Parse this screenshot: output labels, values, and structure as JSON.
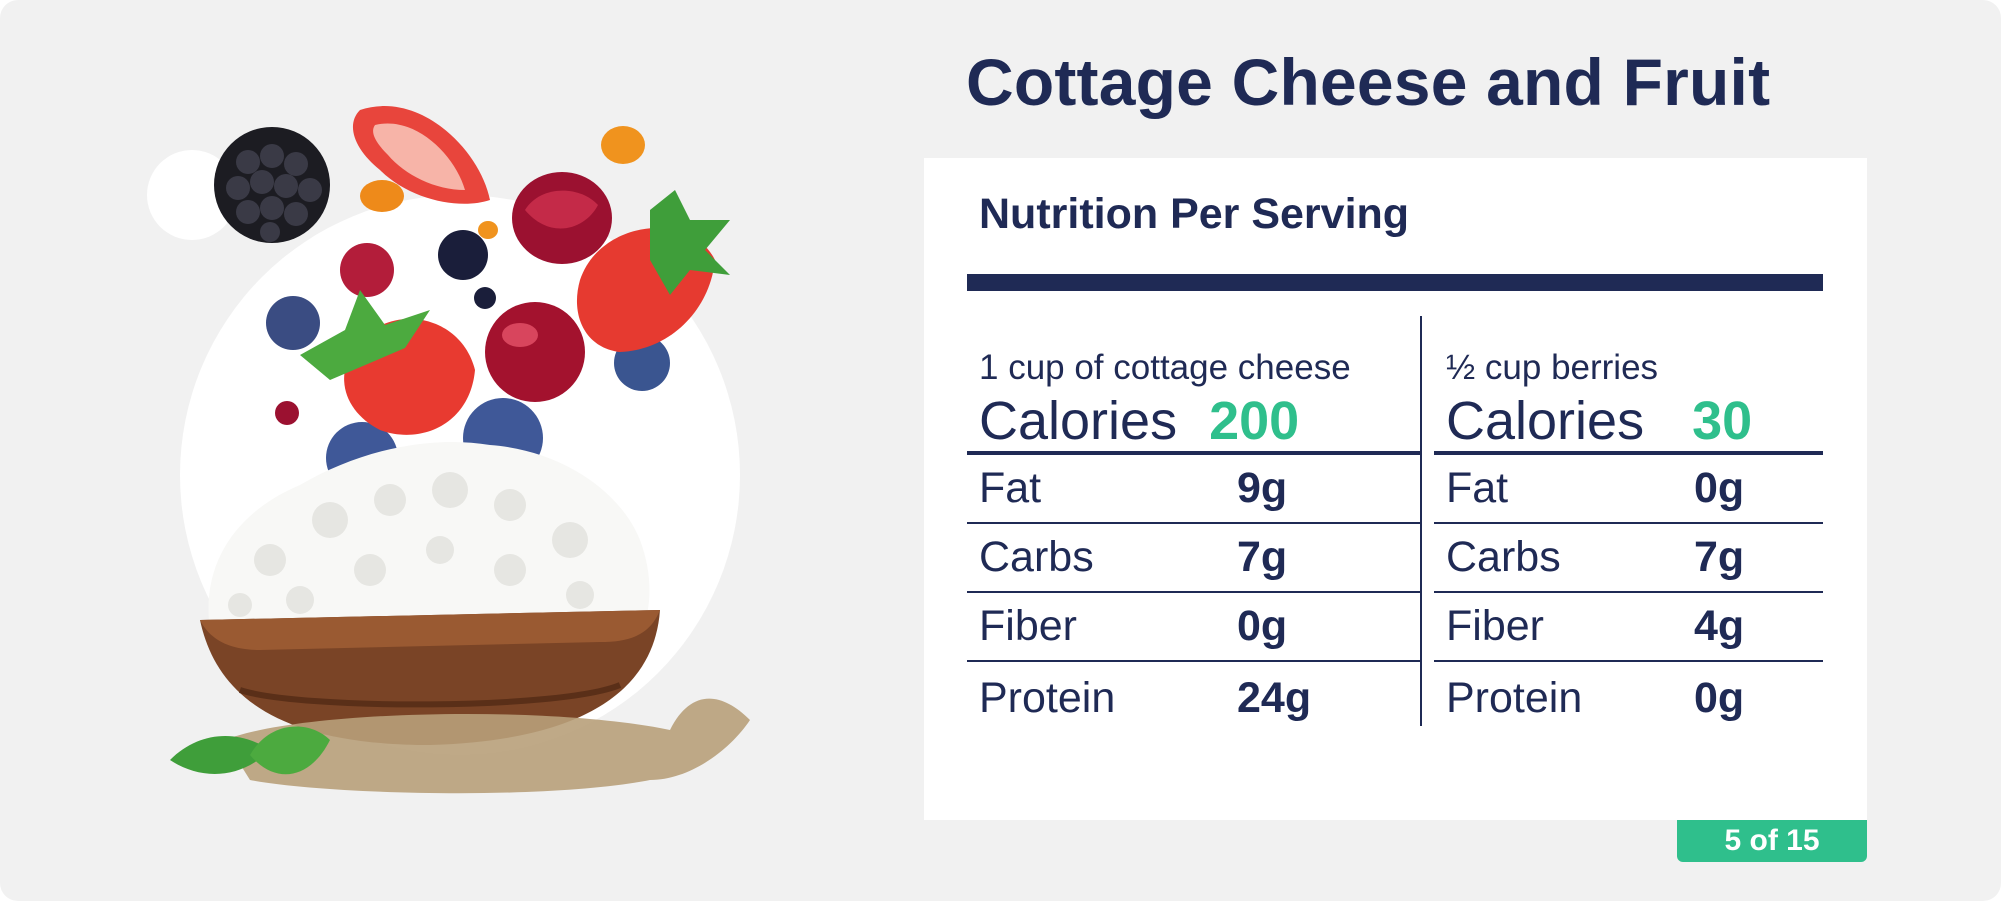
{
  "title": "Cottage Cheese and Fruit",
  "panel": {
    "heading": "Nutrition Per Serving",
    "columns": [
      {
        "serving": "1 cup of cottage cheese",
        "calories_label": "Calories",
        "calories_value": "200",
        "rows": [
          {
            "label": "Fat",
            "value": "9g"
          },
          {
            "label": "Carbs",
            "value": "7g"
          },
          {
            "label": "Fiber",
            "value": "0g"
          },
          {
            "label": "Protein",
            "value": "24g"
          }
        ]
      },
      {
        "serving": "½ cup berries",
        "calories_label": "Calories",
        "calories_value": "30",
        "rows": [
          {
            "label": "Fat",
            "value": "0g"
          },
          {
            "label": "Carbs",
            "value": "7g"
          },
          {
            "label": "Fiber",
            "value": "4g"
          },
          {
            "label": "Protein",
            "value": "0g"
          }
        ]
      }
    ]
  },
  "badge": "5 of 15",
  "colors": {
    "navy": "#1f2a55",
    "accent_green": "#2fbf8c",
    "background": "#f1f1f1"
  },
  "illustration": {
    "icon": "cottage-cheese-bowl-with-berries-icon"
  }
}
